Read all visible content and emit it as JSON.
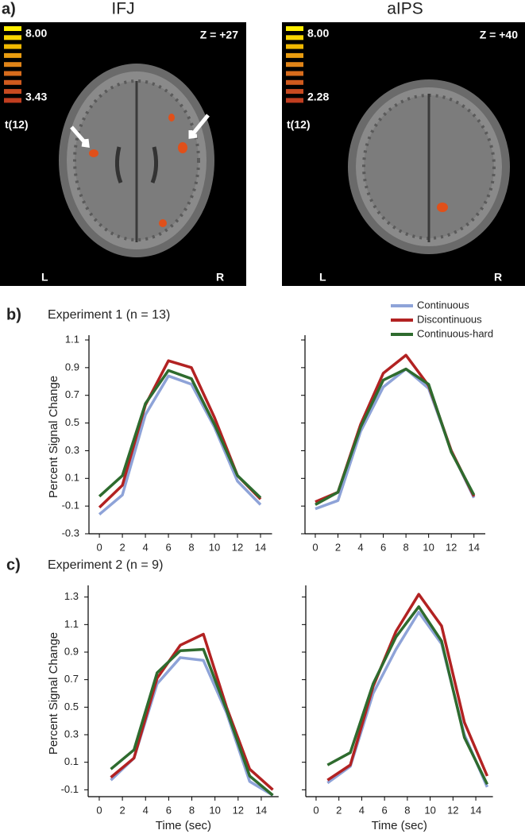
{
  "panel_a": {
    "label": "a)",
    "images": [
      {
        "title": "IFJ",
        "scale_max": "8.00",
        "scale_min": "3.43",
        "stat": "t(12)",
        "z": "Z = +27",
        "left": "L",
        "right": "R"
      },
      {
        "title": "aIPS",
        "scale_max": "8.00",
        "scale_min": "2.28",
        "stat": "t(12)",
        "z": "Z = +40",
        "left": "L",
        "right": "R"
      }
    ]
  },
  "chart_data": [
    {
      "type": "line",
      "panel_label": "b)",
      "title": "Experiment 1 (n = 13)",
      "ylabel": "Percent Signal Change",
      "x": [
        0,
        2,
        4,
        6,
        8,
        10,
        12,
        14
      ],
      "xlim": [
        -1,
        15
      ],
      "xticks": [
        0,
        2,
        4,
        6,
        8,
        10,
        12,
        14
      ],
      "ylim": [
        -0.3,
        1.1
      ],
      "yticks": [
        -0.3,
        -0.1,
        0.1,
        0.3,
        0.5,
        0.7,
        0.9,
        1.1
      ],
      "series": [
        {
          "color": "#8ea3d8",
          "values": [
            -0.16,
            -0.02,
            0.56,
            0.84,
            0.78,
            0.47,
            0.08,
            -0.09
          ]
        },
        {
          "color": "#b22222",
          "values": [
            -0.11,
            0.05,
            0.63,
            0.95,
            0.9,
            0.54,
            0.12,
            -0.05
          ]
        },
        {
          "color": "#2e6b2e",
          "values": [
            -0.03,
            0.12,
            0.64,
            0.88,
            0.82,
            0.49,
            0.12,
            -0.04
          ]
        }
      ]
    },
    {
      "type": "line",
      "legend": true,
      "x": [
        0,
        2,
        4,
        6,
        8,
        10,
        12,
        14
      ],
      "xlim": [
        -1,
        15
      ],
      "xticks": [
        0,
        2,
        4,
        6,
        8,
        10,
        12,
        14
      ],
      "ylim": [
        -0.3,
        1.1
      ],
      "yticks": [
        -0.3,
        -0.1,
        0.1,
        0.3,
        0.5,
        0.7,
        0.9,
        1.1
      ],
      "series": [
        {
          "name": "Continuous",
          "color": "#8ea3d8",
          "values": [
            -0.12,
            -0.06,
            0.44,
            0.76,
            0.89,
            0.75,
            0.3,
            -0.04
          ]
        },
        {
          "name": "Discontinuous",
          "color": "#b22222",
          "values": [
            -0.07,
            0.0,
            0.49,
            0.86,
            0.99,
            0.77,
            0.3,
            -0.03
          ]
        },
        {
          "name": "Continuous-hard",
          "color": "#2e6b2e",
          "values": [
            -0.09,
            0.0,
            0.47,
            0.81,
            0.89,
            0.78,
            0.29,
            -0.02
          ]
        }
      ]
    },
    {
      "type": "line",
      "panel_label": "c)",
      "title": "Experiment 2 (n = 9)",
      "ylabel": "Percent Signal Change",
      "xlabel": "Time (sec)",
      "x": [
        1,
        3,
        5,
        7,
        9,
        11,
        13,
        15
      ],
      "xlim": [
        -1,
        15.5
      ],
      "xticks": [
        0,
        2,
        4,
        6,
        8,
        10,
        12,
        14
      ],
      "ylim": [
        -0.15,
        1.35
      ],
      "yticks": [
        -0.1,
        0.1,
        0.3,
        0.5,
        0.7,
        0.9,
        1.1,
        1.3
      ],
      "series": [
        {
          "color": "#8ea3d8",
          "values": [
            -0.03,
            0.13,
            0.67,
            0.86,
            0.84,
            0.46,
            -0.04,
            -0.14
          ]
        },
        {
          "color": "#b22222",
          "values": [
            -0.01,
            0.13,
            0.71,
            0.95,
            1.03,
            0.5,
            0.05,
            -0.1
          ]
        },
        {
          "color": "#2e6b2e",
          "values": [
            0.05,
            0.19,
            0.75,
            0.91,
            0.92,
            0.48,
            0.0,
            -0.14
          ]
        }
      ]
    },
    {
      "type": "line",
      "xlabel": "Time (sec)",
      "x": [
        1,
        3,
        5,
        7,
        9,
        11,
        13,
        15
      ],
      "xlim": [
        -1,
        15.5
      ],
      "xticks": [
        0,
        2,
        4,
        6,
        8,
        10,
        12,
        14
      ],
      "ylim": [
        -0.15,
        1.35
      ],
      "yticks": [
        -0.1,
        0.1,
        0.3,
        0.5,
        0.7,
        0.9,
        1.1,
        1.3
      ],
      "series": [
        {
          "color": "#8ea3d8",
          "values": [
            -0.05,
            0.07,
            0.6,
            0.92,
            1.19,
            0.96,
            0.3,
            -0.08
          ]
        },
        {
          "color": "#b22222",
          "values": [
            -0.03,
            0.08,
            0.65,
            1.05,
            1.32,
            1.09,
            0.39,
            0.0
          ]
        },
        {
          "color": "#2e6b2e",
          "values": [
            0.08,
            0.17,
            0.67,
            1.01,
            1.23,
            0.98,
            0.28,
            -0.06
          ]
        }
      ]
    }
  ]
}
